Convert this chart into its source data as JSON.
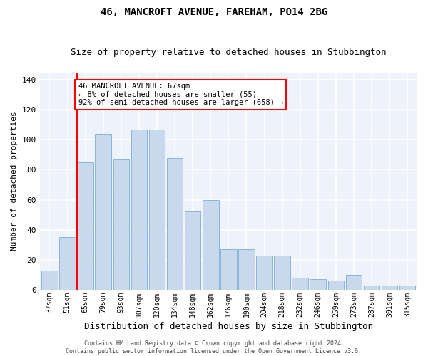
{
  "title": "46, MANCROFT AVENUE, FAREHAM, PO14 2BG",
  "subtitle": "Size of property relative to detached houses in Stubbington",
  "xlabel": "Distribution of detached houses by size in Stubbington",
  "ylabel": "Number of detached properties",
  "categories": [
    "37sqm",
    "51sqm",
    "65sqm",
    "79sqm",
    "93sqm",
    "107sqm",
    "120sqm",
    "134sqm",
    "148sqm",
    "162sqm",
    "176sqm",
    "190sqm",
    "204sqm",
    "218sqm",
    "232sqm",
    "246sqm",
    "259sqm",
    "273sqm",
    "287sqm",
    "301sqm",
    "315sqm"
  ],
  "bar_values": [
    13,
    35,
    85,
    104,
    87,
    107,
    107,
    88,
    52,
    60,
    27,
    27,
    23,
    23,
    8,
    7,
    6,
    10,
    3,
    3,
    3
  ],
  "bar_color": "#c8d9ee",
  "bar_edge_color": "#7bafd4",
  "redline_x": 2,
  "annotation_text": "46 MANCROFT AVENUE: 67sqm\n← 8% of detached houses are smaller (55)\n92% of semi-detached houses are larger (658) →",
  "annotation_box_color": "white",
  "annotation_box_edge": "red",
  "footer_line1": "Contains HM Land Registry data © Crown copyright and database right 2024.",
  "footer_line2": "Contains public sector information licensed under the Open Government Licence v3.0.",
  "ylim": [
    0,
    145
  ],
  "yticks": [
    0,
    20,
    40,
    60,
    80,
    100,
    120,
    140
  ],
  "background_color": "#eef2fa",
  "grid_color": "white",
  "title_fontsize": 10,
  "subtitle_fontsize": 9,
  "xlabel_fontsize": 9,
  "ylabel_fontsize": 8,
  "tick_fontsize": 7,
  "footer_fontsize": 6,
  "ann_fontsize": 7.5
}
